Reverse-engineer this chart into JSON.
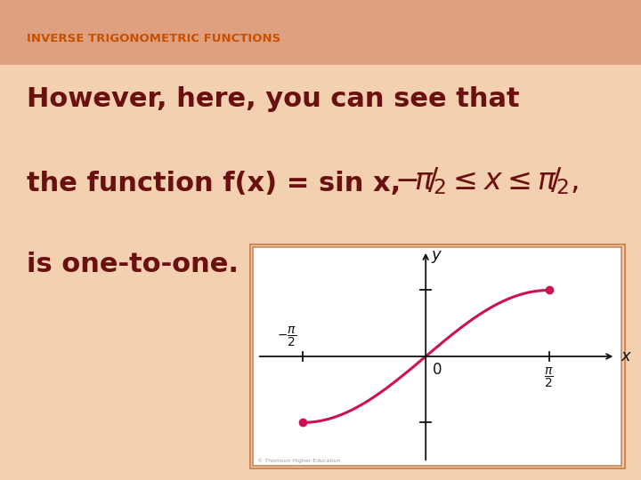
{
  "title": "INVERSE TRIGONOMETRIC FUNCTIONS",
  "title_color": "#c85000",
  "title_fontsize": 9.5,
  "bg_color_top": "#f0c8a8",
  "bg_color_main": "#f2d0b0",
  "header_bg": "#dea080",
  "text_color": "#6b1010",
  "line1": "However, here, you can see that",
  "line2": "the function f(x) = sin x,",
  "line3": "is one-to-one.",
  "main_fontsize": 22,
  "curve_color": "#cc1155",
  "dot_color": "#cc1155",
  "axis_color": "#111111",
  "plot_bg": "#ffffff",
  "plot_border_color": "#cc8855",
  "copyright": "© Thomson Higher Education"
}
